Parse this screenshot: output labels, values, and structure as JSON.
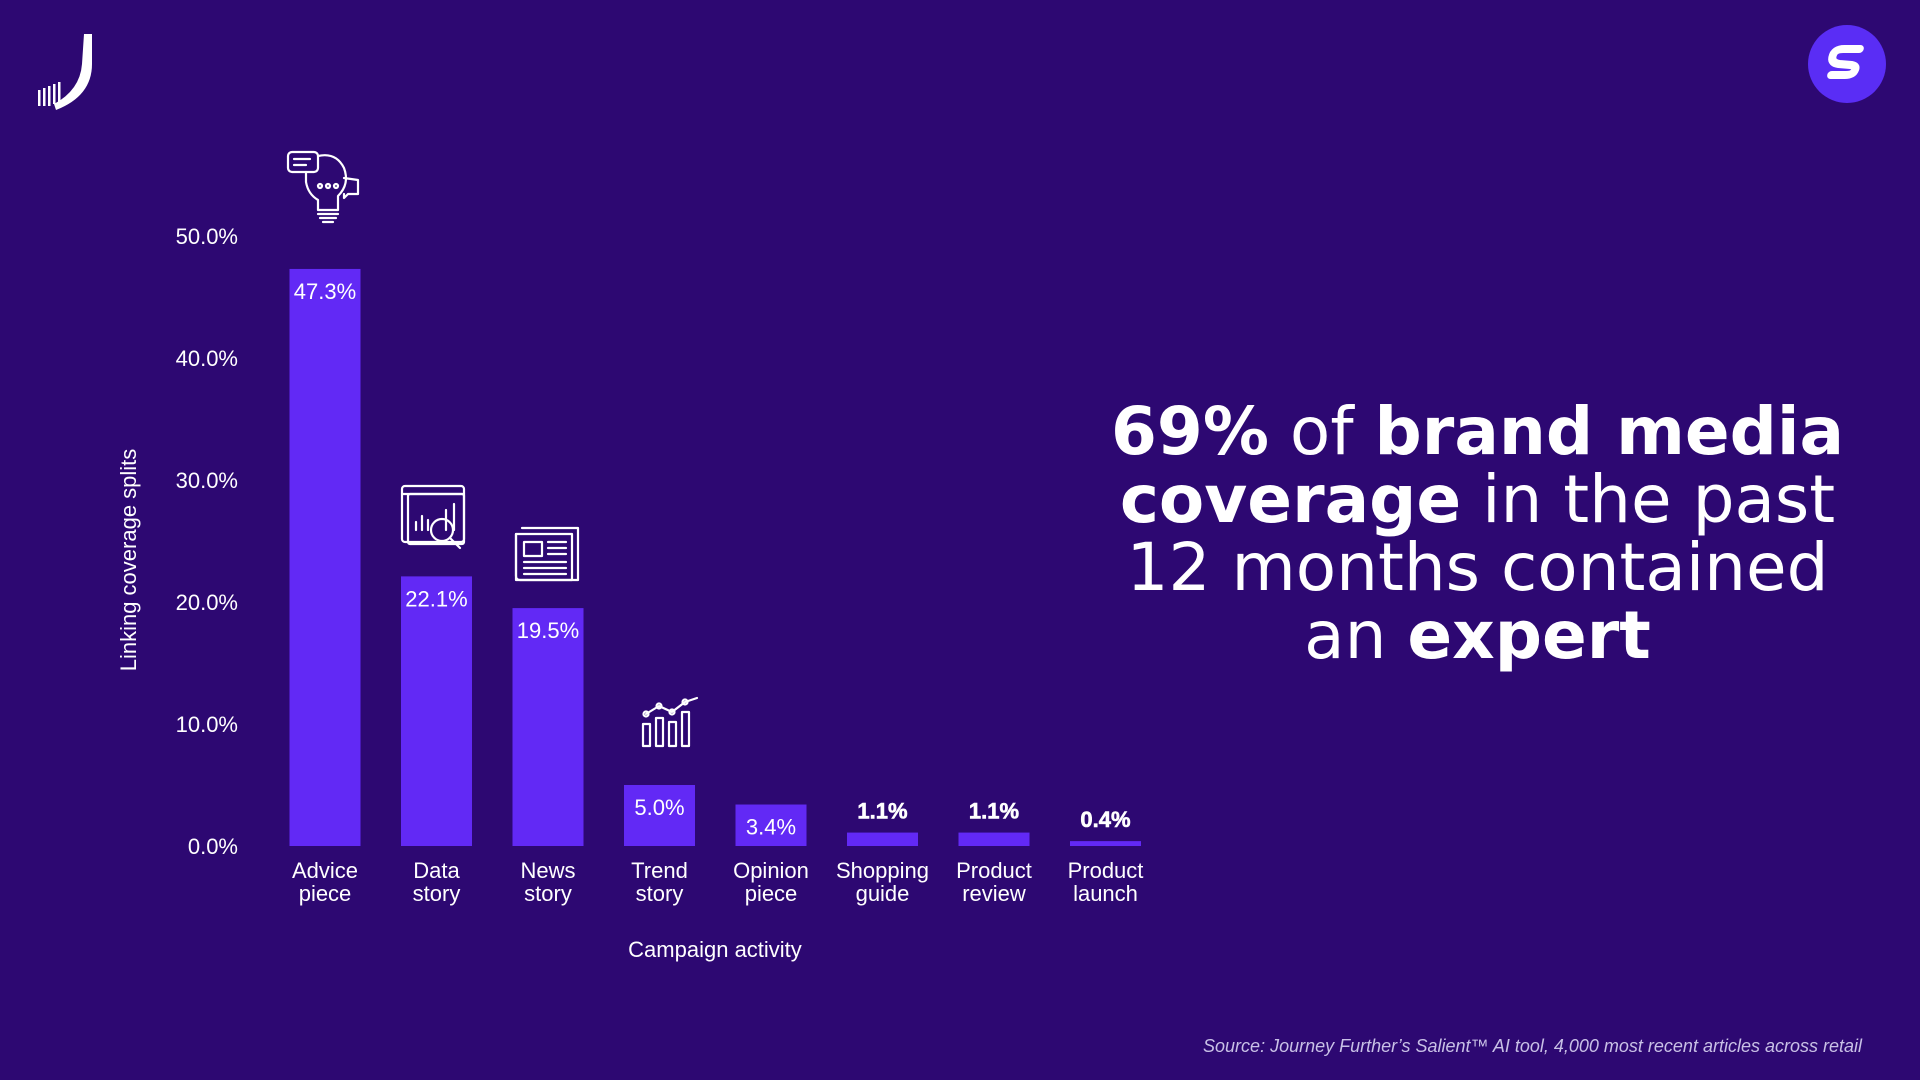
{
  "headline": {
    "part1_bold": "69%",
    "part2": " of ",
    "part3_bold": "brand media coverage",
    "part4": " in the past 12 months contained an ",
    "part5_bold": "expert"
  },
  "source": "Source: Journey Further’s Salient™ AI tool, 4,000 most recent  articles across retail",
  "icons": [
    "journey-further-logo-icon",
    "salient-s-logo-icon",
    "lightbulb-chat-icon",
    "data-search-icon",
    "newspaper-icon",
    "trend-chart-icon"
  ],
  "colors": {
    "background": "#2d0872",
    "bar": "#6229f5",
    "accent": "#5a2df5"
  },
  "chart_data": {
    "type": "bar",
    "categories": [
      "Advice\npiece",
      "Data\nstory",
      "News\nstory",
      "Trend\nstory",
      "Opinion\npiece",
      "Shopping\nguide",
      "Product\nreview",
      "Product\nlaunch"
    ],
    "values": [
      47.3,
      22.1,
      19.5,
      5.0,
      3.4,
      1.1,
      1.1,
      0.4
    ],
    "value_labels": [
      "47.3%",
      "22.1%",
      "19.5%",
      "5.0%",
      "3.4%",
      "1.1%",
      "1.1%",
      "0.4%"
    ],
    "xlabel": "Campaign activity",
    "ylabel": "Linking coverage splits",
    "ylim": [
      0,
      50
    ],
    "yticks": [
      "0.0%",
      "10.0%",
      "20.0%",
      "30.0%",
      "40.0%",
      "50.0%"
    ],
    "grid": false
  }
}
